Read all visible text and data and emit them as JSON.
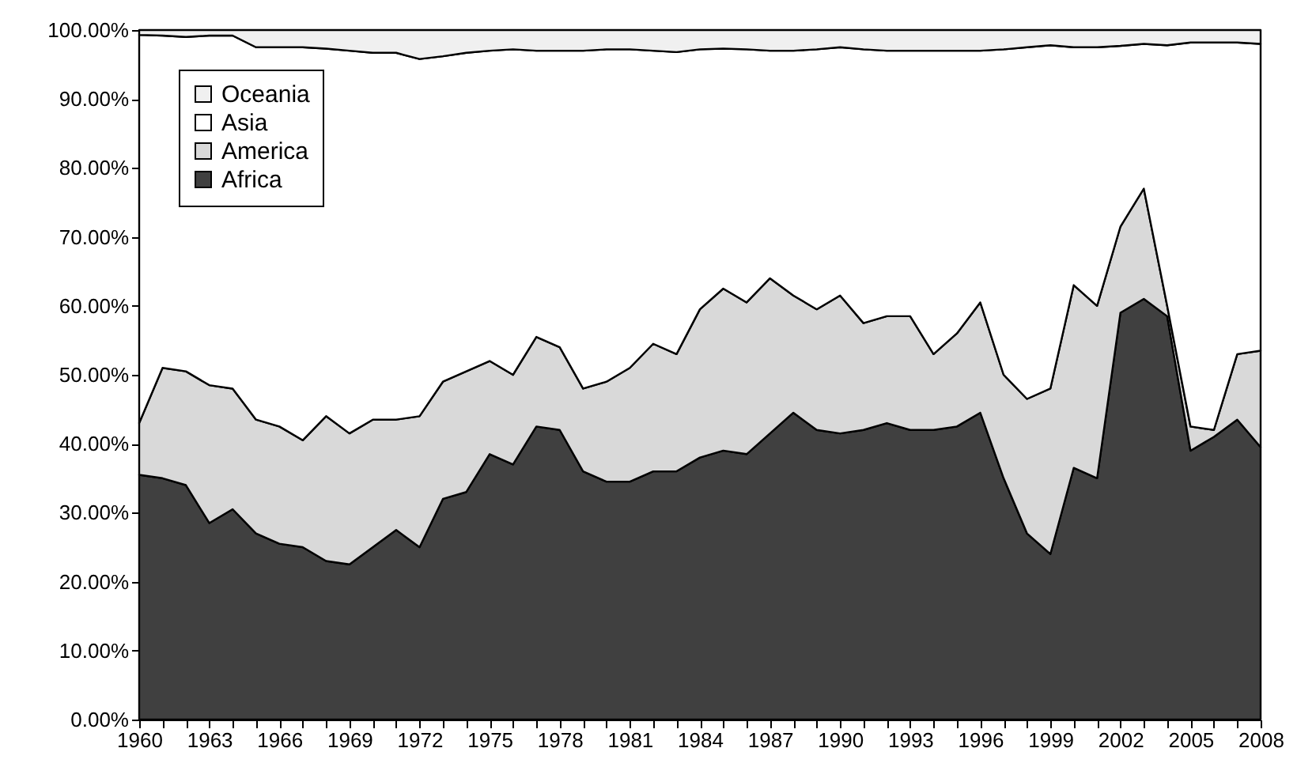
{
  "chart_data": {
    "type": "area",
    "stacked": true,
    "legend": "top left",
    "grid": false,
    "x": [
      1960,
      1961,
      1962,
      1963,
      1964,
      1965,
      1966,
      1967,
      1968,
      1969,
      1970,
      1971,
      1972,
      1973,
      1974,
      1975,
      1976,
      1977,
      1978,
      1979,
      1980,
      1981,
      1982,
      1983,
      1984,
      1985,
      1986,
      1987,
      1988,
      1989,
      1990,
      1991,
      1992,
      1993,
      1994,
      1995,
      1996,
      1997,
      1998,
      1999,
      2000,
      2001,
      2002,
      2003,
      2004,
      2005,
      2006,
      2007,
      2008
    ],
    "xlim": [
      1960,
      2008
    ],
    "xticks": [
      1960,
      {
        "value": 1961,
        "label": null
      },
      {
        "value": 1962,
        "label": null
      },
      1963,
      {
        "value": 1964,
        "label": null
      },
      {
        "value": 1965,
        "label": null
      },
      1966,
      {
        "value": 1967,
        "label": null
      },
      {
        "value": 1968,
        "label": null
      },
      1969,
      {
        "value": 1970,
        "label": null
      },
      {
        "value": 1971,
        "label": null
      },
      1972,
      {
        "value": 1973,
        "label": null
      },
      {
        "value": 1974,
        "label": null
      },
      1975,
      {
        "value": 1976,
        "label": null
      },
      {
        "value": 1977,
        "label": null
      },
      1978,
      {
        "value": 1979,
        "label": null
      },
      {
        "value": 1980,
        "label": null
      },
      1981,
      {
        "value": 1982,
        "label": null
      },
      {
        "value": 1983,
        "label": null
      },
      1984,
      {
        "value": 1985,
        "label": null
      },
      {
        "value": 1986,
        "label": null
      },
      1987,
      {
        "value": 1988,
        "label": null
      },
      {
        "value": 1989,
        "label": null
      },
      1990,
      {
        "value": 1991,
        "label": null
      },
      {
        "value": 1992,
        "label": null
      },
      1993,
      {
        "value": 1994,
        "label": null
      },
      {
        "value": 1995,
        "label": null
      },
      1996,
      {
        "value": 1997,
        "label": null
      },
      {
        "value": 1998,
        "label": null
      },
      1999,
      {
        "value": 2000,
        "label": null
      },
      {
        "value": 2001,
        "label": null
      },
      2002,
      {
        "value": 2003,
        "label": null
      },
      {
        "value": 2004,
        "label": null
      },
      2005,
      {
        "value": 2006,
        "label": null
      },
      {
        "value": 2007,
        "label": null
      },
      2008
    ],
    "ylim": [
      0,
      100
    ],
    "yticks": [
      {
        "value": 0,
        "label": "0.00%"
      },
      {
        "value": 10,
        "label": "10.00%"
      },
      {
        "value": 20,
        "label": "20.00%"
      },
      {
        "value": 30,
        "label": "30.00%"
      },
      {
        "value": 40,
        "label": "40.00%"
      },
      {
        "value": 50,
        "label": "50.00%"
      },
      {
        "value": 60,
        "label": "60.00%"
      },
      {
        "value": 70,
        "label": "70.00%"
      },
      {
        "value": 80,
        "label": "80.00%"
      },
      {
        "value": 90,
        "label": "90.00%"
      },
      {
        "value": 100,
        "label": "100.00%"
      }
    ],
    "series": [
      {
        "name": "Africa",
        "color": "#404040",
        "values": [
          35.5,
          35,
          34,
          28.5,
          30.5,
          27,
          25.5,
          25,
          23,
          22.5,
          25,
          27.5,
          25,
          32,
          33,
          38.5,
          37,
          42.5,
          42,
          36,
          34.5,
          34.5,
          36,
          36,
          38,
          39,
          38.5,
          41.5,
          44.5,
          42,
          41.5,
          42,
          43,
          42,
          42,
          42.5,
          44.5,
          35,
          27,
          24,
          36.5,
          35,
          59,
          61,
          58.5,
          39,
          41,
          43.5,
          39.5
        ]
      },
      {
        "name": "America",
        "color": "#d9d9d9",
        "values": [
          7.5,
          16,
          16.5,
          20,
          17.5,
          16.5,
          17,
          15.5,
          21,
          19,
          18.5,
          16,
          19,
          17,
          17.5,
          13.5,
          13,
          13,
          12,
          12,
          14.5,
          16.5,
          18.5,
          17,
          21.5,
          23.5,
          22,
          22.5,
          17,
          17.5,
          20,
          15.5,
          15.5,
          16.5,
          11,
          13.5,
          16,
          15,
          19.5,
          24,
          26.5,
          25,
          12.5,
          16,
          1.5,
          3.5,
          1,
          9.5,
          14
        ]
      },
      {
        "name": "Asia",
        "color": "#ffffff",
        "values": [
          56.3,
          48.2,
          48.5,
          50.7,
          51.2,
          54,
          55,
          57,
          53.3,
          55.5,
          53.2,
          53.2,
          51.8,
          47.2,
          46.2,
          45,
          47.2,
          41.5,
          43,
          49,
          48.2,
          46.2,
          42.5,
          43.8,
          37.7,
          34.8,
          36.7,
          33,
          35.5,
          37.7,
          36,
          39.7,
          38.5,
          38.5,
          44,
          41,
          36.5,
          47.2,
          51,
          49.8,
          34.5,
          37.5,
          26.2,
          21,
          37.8,
          55.7,
          56.2,
          45.2,
          44.5
        ]
      },
      {
        "name": "Oceania",
        "color": "#f0f0f0",
        "values": [
          0.7,
          0.8,
          1,
          0.8,
          0.8,
          2.5,
          2.5,
          2.5,
          2.7,
          3,
          3.3,
          3.3,
          4.2,
          3.8,
          3.3,
          3,
          2.8,
          3,
          3,
          3,
          2.8,
          2.8,
          3,
          3.2,
          2.8,
          2.7,
          2.8,
          3,
          3,
          2.8,
          2.5,
          2.8,
          3,
          3,
          3,
          3,
          3,
          2.8,
          2.5,
          2.2,
          2.5,
          2.5,
          2.3,
          2,
          2.2,
          1.8,
          1.8,
          1.8,
          2
        ]
      }
    ]
  }
}
